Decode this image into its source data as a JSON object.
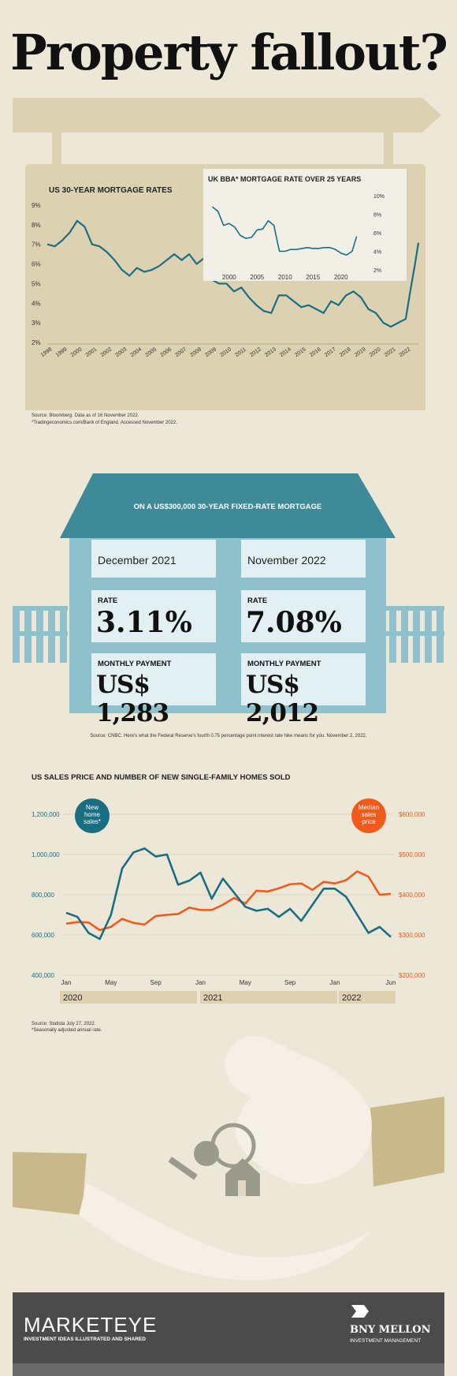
{
  "title": "Property fallout?",
  "mortgage_section": {
    "title": "US 30-YEAR MORTGAGE RATES",
    "source_1": "Source: Bloomberg. Data as of 16 November 2022.",
    "source_2": "*Tradingeconomics.com/Bank of England. Accessed November 2022.",
    "inset_title": "UK BBA* MORTGAGE RATE OVER 25 YEARS"
  },
  "house": {
    "heading": "ON A US$300,000 30-YEAR FIXED-RATE MORTGAGE",
    "left_date": "December 2021",
    "right_date": "November 2022",
    "rate_label": "RATE",
    "left_rate": "3.11%",
    "right_rate": "7.08%",
    "payment_label": "MONTHLY PAYMENT",
    "left_payment": "US$ 1,283",
    "right_payment": "US$ 2,012",
    "source": "Source: CNBC. Here's what the Federal Reserve's fourth 0.75 percentage point interest rate hike means for you. November 2, 2022."
  },
  "sales_section": {
    "title": "US SALES PRICE AND NUMBER OF NEW SINGLE-FAMILY HOMES SOLD",
    "source_1": "Source: Statista July 27, 2022.",
    "source_2": "*Seasonally adjusted annual rate."
  },
  "footer": {
    "brand": "MARKETEYE",
    "tagline": "INVESTMENT IDEAS ILLUSTRATED AND SHARED",
    "company": "BNY MELLON",
    "company_sub": "INVESTMENT MANAGEMENT"
  },
  "colors": {
    "teal": "#1a6e82",
    "orange": "#f05a1a",
    "tan": "#dcd2b2",
    "house_blue": "#8fc1cd",
    "roof": "#3e8a99"
  },
  "chart_data": [
    {
      "type": "line",
      "title": "US 30-YEAR MORTGAGE RATES",
      "x": [
        1998,
        1998.5,
        1999,
        1999.5,
        2000,
        2000.5,
        2001,
        2001.5,
        2002,
        2002.5,
        2003,
        2003.5,
        2004,
        2004.5,
        2005,
        2005.5,
        2006,
        2006.5,
        2007,
        2007.5,
        2008,
        2008.5,
        2009,
        2009.5,
        2010,
        2010.5,
        2011,
        2011.5,
        2012,
        2012.5,
        2013,
        2013.5,
        2014,
        2014.5,
        2015,
        2015.5,
        2016,
        2016.5,
        2017,
        2017.5,
        2018,
        2018.5,
        2019,
        2019.5,
        2020,
        2020.5,
        2021,
        2021.5,
        2022,
        2022.3,
        2022.6,
        2022.85
      ],
      "series": [
        {
          "values": [
            7.0,
            6.9,
            7.2,
            7.6,
            8.2,
            7.9,
            7.0,
            6.9,
            6.6,
            6.2,
            5.7,
            5.4,
            5.8,
            5.6,
            5.7,
            5.9,
            6.2,
            6.5,
            6.2,
            6.5,
            6.0,
            6.3,
            5.2,
            5.0,
            5.0,
            4.6,
            4.8,
            4.3,
            3.9,
            3.6,
            3.5,
            4.4,
            4.4,
            4.1,
            3.8,
            3.9,
            3.7,
            3.5,
            4.1,
            3.9,
            4.4,
            4.6,
            4.3,
            3.7,
            3.5,
            3.0,
            2.8,
            3.0,
            3.2,
            4.6,
            5.9,
            7.08
          ]
        }
      ],
      "xticks": [
        1998,
        1999,
        2000,
        2001,
        2002,
        2003,
        2004,
        2005,
        2006,
        2007,
        2008,
        2009,
        2010,
        2011,
        2012,
        2013,
        2014,
        2015,
        2016,
        2017,
        2018,
        2019,
        2020,
        2021,
        2022
      ],
      "ylim": [
        2,
        9
      ],
      "yticks": [
        "2%",
        "3%",
        "4%",
        "5%",
        "6%",
        "7%",
        "8%",
        "9%"
      ]
    },
    {
      "type": "line",
      "title": "UK BBA* MORTGAGE RATE OVER 25 YEARS",
      "x": [
        1997,
        1998,
        1999,
        2000,
        2001,
        2002,
        2003,
        2004,
        2005,
        2006,
        2007,
        2008,
        2008.7,
        2009,
        2010,
        2011,
        2012,
        2013,
        2014,
        2015,
        2016,
        2017,
        2018,
        2019,
        2020,
        2021,
        2022,
        2022.8
      ],
      "series": [
        {
          "values": [
            8.8,
            8.3,
            6.8,
            7.0,
            6.6,
            5.7,
            5.4,
            5.5,
            6.3,
            6.4,
            7.3,
            6.8,
            4.8,
            4.0,
            4.0,
            4.2,
            4.2,
            4.3,
            4.4,
            4.3,
            4.3,
            4.4,
            4.4,
            4.2,
            3.8,
            3.6,
            4.0,
            5.6
          ]
        }
      ],
      "xticks": [
        2000,
        2005,
        2010,
        2015,
        2020
      ],
      "ylim": [
        2,
        10
      ],
      "yticks": [
        "2%",
        "4%",
        "6%",
        "8%",
        "10%"
      ]
    },
    {
      "type": "line",
      "title": "US SALES PRICE AND NUMBER OF NEW SINGLE-FAMILY HOMES SOLD",
      "categories": [
        "2020-01",
        "2020-02",
        "2020-03",
        "2020-04",
        "2020-05",
        "2020-06",
        "2020-07",
        "2020-08",
        "2020-09",
        "2020-10",
        "2020-11",
        "2020-12",
        "2021-01",
        "2021-02",
        "2021-03",
        "2021-04",
        "2021-05",
        "2021-06",
        "2021-07",
        "2021-08",
        "2021-09",
        "2021-10",
        "2021-11",
        "2021-12",
        "2022-01",
        "2022-02",
        "2022-03",
        "2022-04",
        "2022-05",
        "2022-06"
      ],
      "series": [
        {
          "name": "New home sales*",
          "axis": "left",
          "values": [
            710000,
            690000,
            610000,
            580000,
            700000,
            930000,
            1010000,
            1030000,
            990000,
            1000000,
            850000,
            870000,
            910000,
            780000,
            880000,
            810000,
            740000,
            720000,
            730000,
            690000,
            730000,
            670000,
            750000,
            830000,
            830000,
            790000,
            700000,
            610000,
            640000,
            590000
          ]
        },
        {
          "name": "Median sales price",
          "axis": "right",
          "values": [
            328000,
            332000,
            331000,
            312000,
            320000,
            340000,
            330000,
            326000,
            347000,
            350000,
            352000,
            368000,
            362000,
            362000,
            375000,
            392000,
            378000,
            410000,
            408000,
            416000,
            426000,
            428000,
            412000,
            432000,
            428000,
            436000,
            458000,
            445000,
            400000,
            402000
          ]
        }
      ],
      "ylim_left": [
        400000,
        1200000
      ],
      "yticks_left": [
        "400,000",
        "600,000",
        "800,000",
        "1,000,000",
        "1,200,000"
      ],
      "ylim_right": [
        200000,
        600000
      ],
      "yticks_right": [
        "$200,000",
        "$300,000",
        "$400,000",
        "$500,000",
        "$600,000"
      ],
      "xticks": [
        "Jan",
        "May",
        "Sep",
        "Jan",
        "May",
        "Sep",
        "Jan",
        "Jun"
      ],
      "years": [
        "2020",
        "2021",
        "2022"
      ]
    }
  ]
}
